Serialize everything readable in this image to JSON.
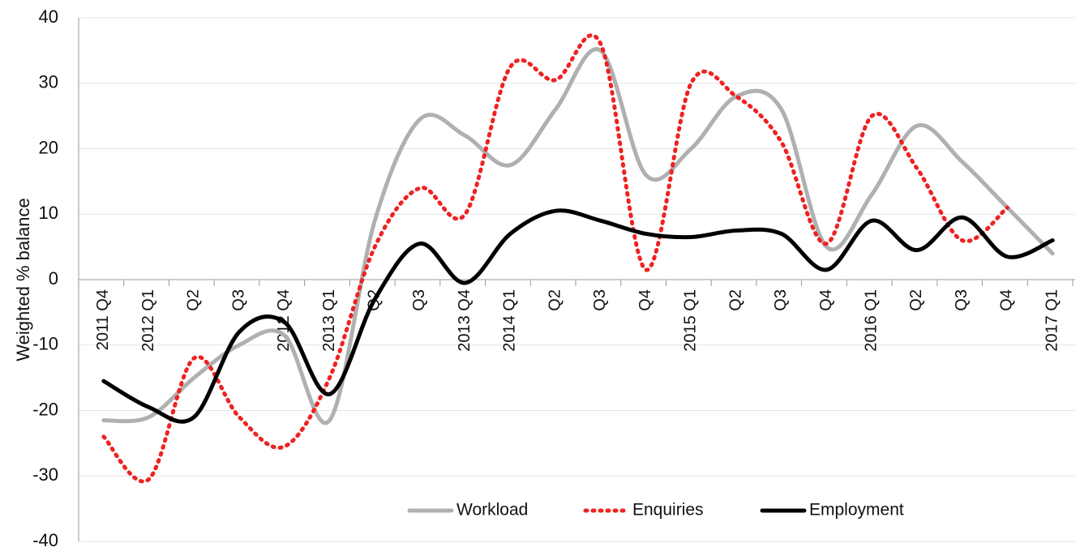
{
  "chart_data": {
    "type": "line",
    "y_axis_label": "Weighted % balance",
    "categories": [
      "2011 Q4",
      "2012 Q1",
      "Q2",
      "Q3",
      "2012 Q4",
      "2013 Q1",
      "Q2",
      "Q3",
      "2013 Q4",
      "2014 Q1",
      "Q2",
      "Q3",
      "Q4",
      "2015 Q1",
      "Q2",
      "Q3",
      "Q4",
      "2016 Q1",
      "Q2",
      "Q3",
      "Q4",
      "2017 Q1"
    ],
    "series": [
      {
        "name": "Workload",
        "color": "#b0b0b0",
        "style": "solid",
        "values": [
          -21.5,
          -21,
          -15,
          -10,
          -8.5,
          -21.5,
          9,
          24.5,
          22,
          17.5,
          26,
          35,
          16,
          20,
          28,
          26,
          5,
          13,
          23.5,
          18,
          11,
          4
        ]
      },
      {
        "name": "Enquiries",
        "color": "#ee2222",
        "style": "dotted",
        "values": [
          -24,
          -30.5,
          -12,
          -21,
          -25.5,
          -15,
          5,
          14,
          10,
          32.5,
          30.5,
          36,
          1.5,
          30,
          28,
          21,
          5.5,
          25,
          17,
          6,
          11,
          null
        ]
      },
      {
        "name": "Employment",
        "color": "#000000",
        "style": "solid",
        "values": [
          -15.5,
          -19.5,
          -21,
          -8,
          -6.5,
          -17.5,
          -3,
          5.5,
          -0.5,
          7,
          10.5,
          9,
          7,
          6.5,
          7.5,
          7,
          1.5,
          9,
          4.5,
          9.5,
          3.5,
          6
        ]
      }
    ],
    "ylim": [
      -40,
      40
    ],
    "yticks": [
      -40,
      -30,
      -20,
      -10,
      0,
      10,
      20,
      30,
      40
    ],
    "grid": true,
    "legend": "bottom"
  }
}
